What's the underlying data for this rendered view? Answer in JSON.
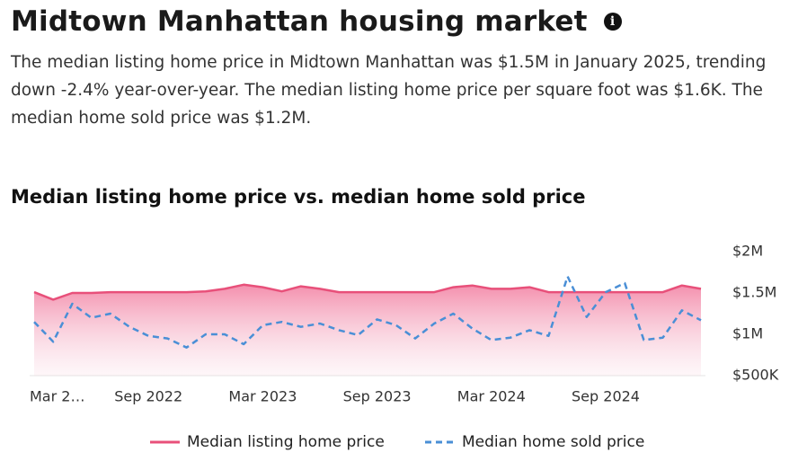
{
  "header": {
    "title": "Midtown Manhattan housing market",
    "description": "The median listing home price in Midtown Manhattan was $1.5M in January 2025, trending down -2.4% year-over-year. The median listing home price per square foot was $1.6K. The median home sold price was $1.2M."
  },
  "chart_data": {
    "type": "line",
    "title": "Median listing home price vs. median home sold price",
    "categories": [
      "Mar 2…",
      null,
      null,
      null,
      null,
      null,
      "Sep 2022",
      null,
      null,
      null,
      null,
      null,
      "Mar 2023",
      null,
      null,
      null,
      null,
      null,
      "Sep 2023",
      null,
      null,
      null,
      null,
      null,
      "Mar 2024",
      null,
      null,
      null,
      null,
      null,
      "Sep 2024",
      null,
      null,
      null,
      null,
      null
    ],
    "series": [
      {
        "name": "Median listing home price",
        "color": "#e8507a",
        "line_style": "solid",
        "area": true,
        "values": [
          1510000,
          1420000,
          1500000,
          1500000,
          1510000,
          1510000,
          1510000,
          1510000,
          1510000,
          1520000,
          1550000,
          1600000,
          1570000,
          1520000,
          1580000,
          1550000,
          1510000,
          1510000,
          1510000,
          1510000,
          1510000,
          1510000,
          1570000,
          1590000,
          1550000,
          1550000,
          1570000,
          1510000,
          1510000,
          1510000,
          1510000,
          1510000,
          1510000,
          1510000,
          1590000,
          1550000
        ]
      },
      {
        "name": "Median home sold price",
        "color": "#4a8fd6",
        "line_style": "dashed",
        "area": false,
        "values": [
          1150000,
          910000,
          1370000,
          1200000,
          1250000,
          1090000,
          980000,
          950000,
          840000,
          1000000,
          1000000,
          880000,
          1110000,
          1150000,
          1090000,
          1130000,
          1050000,
          990000,
          1180000,
          1110000,
          950000,
          1130000,
          1250000,
          1070000,
          930000,
          960000,
          1050000,
          980000,
          1700000,
          1210000,
          1510000,
          1620000,
          930000,
          960000,
          1290000,
          1170000
        ]
      }
    ],
    "ylim": [
      500000,
      2000000
    ],
    "yticks": [
      {
        "value": 500000,
        "label": "$500K"
      },
      {
        "value": 1000000,
        "label": "$1M"
      },
      {
        "value": 1500000,
        "label": "$1.5M"
      },
      {
        "value": 2000000,
        "label": "$2M"
      }
    ],
    "yaxis_position": "right",
    "grid": false
  }
}
